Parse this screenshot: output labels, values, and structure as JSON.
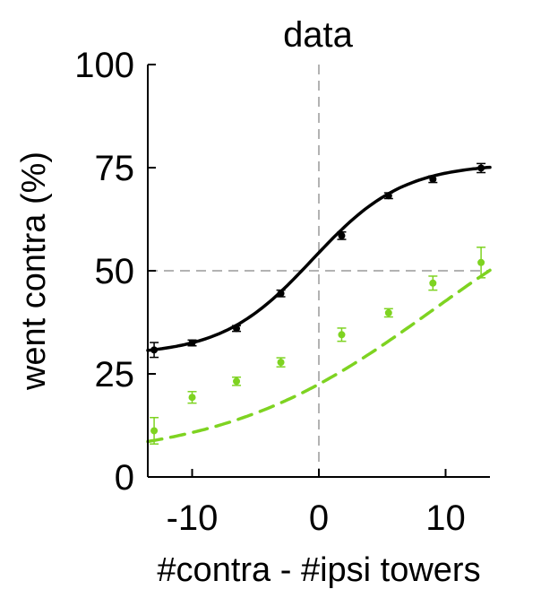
{
  "chart_data": {
    "type": "line",
    "title": "data",
    "xlabel": "#contra - #ipsi towers",
    "ylabel": "went contra (%)",
    "xlim": [
      -13.5,
      13.5
    ],
    "ylim": [
      0,
      100
    ],
    "xticks": [
      -10,
      0,
      10
    ],
    "yticks": [
      0,
      25,
      50,
      75,
      100
    ],
    "xtick_labels": [
      "-10",
      "0",
      "10"
    ],
    "ytick_labels": [
      "0",
      "25",
      "50",
      "75",
      "100"
    ],
    "reference_lines": {
      "x": 0,
      "y": 50,
      "style": "dashed",
      "color": "#b3b3b3"
    },
    "series": [
      {
        "name": "black",
        "color": "#000000",
        "points": [
          {
            "x": -13,
            "y": 30.8,
            "err": 1.8
          },
          {
            "x": -10,
            "y": 32.5,
            "err": 0.7
          },
          {
            "x": -6.5,
            "y": 36.0,
            "err": 0.7
          },
          {
            "x": -3,
            "y": 44.5,
            "err": 0.8
          },
          {
            "x": 1.8,
            "y": 58.5,
            "err": 0.9
          },
          {
            "x": 5.5,
            "y": 68.2,
            "err": 0.7
          },
          {
            "x": 9,
            "y": 72.2,
            "err": 0.8
          },
          {
            "x": 12.8,
            "y": 74.9,
            "err": 1.1
          }
        ],
        "fit": {
          "style": "solid",
          "lower": 29.5,
          "upper": 76.0,
          "center": -0.5,
          "slope": 0.28
        }
      },
      {
        "name": "green",
        "color": "#7ed321",
        "points": [
          {
            "x": -13,
            "y": 11.2,
            "err": 3.2
          },
          {
            "x": -10,
            "y": 19.3,
            "err": 1.4
          },
          {
            "x": -6.5,
            "y": 23.2,
            "err": 1.0
          },
          {
            "x": -3,
            "y": 27.8,
            "err": 1.1
          },
          {
            "x": 1.8,
            "y": 34.5,
            "err": 1.6
          },
          {
            "x": 5.5,
            "y": 39.8,
            "err": 1.0
          },
          {
            "x": 9,
            "y": 47.0,
            "err": 1.7
          },
          {
            "x": 12.8,
            "y": 52.0,
            "err": 3.7
          }
        ],
        "fit": {
          "style": "dashed",
          "lower": 4.0,
          "upper": 77.0,
          "center": 9.0,
          "slope": 0.12
        }
      }
    ]
  }
}
